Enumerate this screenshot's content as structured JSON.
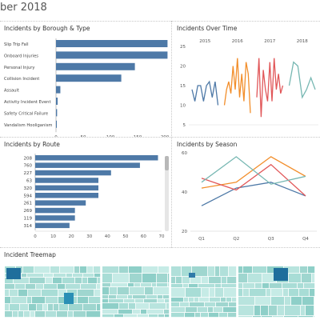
{
  "header": {
    "title": "ber 2018"
  },
  "panels": {
    "borough": {
      "title": "Incidents by Borough & Type"
    },
    "time": {
      "title": "Incidents Over Time"
    },
    "route": {
      "title": "Incidents by Route"
    },
    "season": {
      "title": "Incidents by Season"
    },
    "treemap": {
      "title": "Incident Treemap"
    }
  },
  "colors": {
    "bar": "#4e79a7",
    "line_2015": "#4e79a7",
    "line_2016": "#f28e2b",
    "line_2017": "#e15759",
    "line_2018": "#76b7b2",
    "treemap_dark": "#1f6e9c",
    "treemap_light": "#a8ddd6"
  },
  "chart_data": [
    {
      "type": "bar",
      "orientation": "horizontal",
      "categories": [
        "Slip Trip Fall",
        "Onboard Injuries",
        "Personal Injury",
        "Collision Incident",
        "Assault",
        "Activity Incident Event",
        "Safety Critical Failure",
        "Vandalism Hooliganism"
      ],
      "values": [
        205,
        205,
        145,
        120,
        8,
        3,
        2,
        1
      ],
      "xlim": [
        0,
        200
      ],
      "xticks": [
        "0",
        "50",
        "100",
        "150",
        "200"
      ]
    },
    {
      "type": "line",
      "year_labels": [
        "2015",
        "2016",
        "2017",
        "2018"
      ],
      "ylim": [
        5,
        25
      ],
      "yticks": [
        "5",
        "10",
        "15",
        "20",
        "25"
      ],
      "series": [
        {
          "name": "2015",
          "values": [
            14,
            11,
            15,
            15,
            11,
            15,
            16,
            12,
            16,
            10
          ]
        },
        {
          "name": "2016",
          "values": [
            10,
            14,
            16,
            13,
            20,
            14,
            22,
            12,
            18,
            11,
            21,
            18,
            8
          ]
        },
        {
          "name": "2017",
          "values": [
            12,
            22,
            7,
            19,
            14,
            11,
            21,
            11,
            22,
            14,
            18,
            13,
            15
          ]
        },
        {
          "name": "2018",
          "values": [
            15,
            21,
            20,
            12,
            14,
            17,
            14
          ]
        }
      ]
    },
    {
      "type": "bar",
      "orientation": "horizontal",
      "categories": [
        "208",
        "760",
        "227",
        "63",
        "320",
        "594",
        "261",
        "269",
        "119",
        "314"
      ],
      "values": [
        68,
        58,
        42,
        35,
        35,
        35,
        28,
        22,
        22,
        19
      ],
      "xlim": [
        0,
        70
      ],
      "xticks": [
        "0",
        "10",
        "20",
        "30",
        "40",
        "50",
        "60",
        "70"
      ]
    },
    {
      "type": "line",
      "categories": [
        "Q1",
        "Q2",
        "Q3",
        "Q4"
      ],
      "ylim": [
        20,
        60
      ],
      "yticks": [
        "20",
        "40",
        "60"
      ],
      "series": [
        {
          "name": "2015",
          "values": [
            33,
            42,
            45,
            38
          ]
        },
        {
          "name": "2016",
          "values": [
            42,
            45,
            58,
            48
          ]
        },
        {
          "name": "2017",
          "values": [
            47,
            41,
            54,
            38
          ]
        },
        {
          "name": "2018",
          "values": [
            45,
            58,
            44,
            48
          ]
        }
      ]
    }
  ]
}
